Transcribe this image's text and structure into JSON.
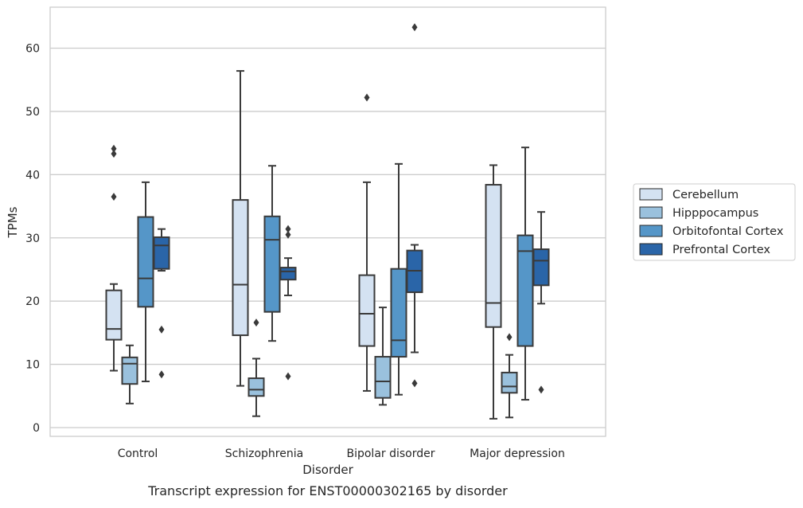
{
  "chart_data": {
    "type": "box",
    "title": "",
    "caption": "Transcript expression for ENST00000302165 by disorder",
    "xlabel": "Disorder",
    "ylabel": "TPMs",
    "ylim": [
      -1.5,
      66
    ],
    "yticks": [
      0,
      10,
      20,
      30,
      40,
      50,
      60
    ],
    "grid": true,
    "legend_position": "right",
    "categories": [
      "Control",
      "Schizophrenia",
      "Bipolar disorder",
      "Major depression"
    ],
    "series": [
      {
        "name": "Cerebellum",
        "color": "#d4e2f2",
        "boxes": [
          {
            "whisker_low": 9.0,
            "q1": 13.9,
            "median": 15.6,
            "q3": 21.7,
            "whisker_high": 22.7,
            "outliers": [
              44.1,
              43.3,
              36.5
            ]
          },
          {
            "whisker_low": 6.6,
            "q1": 14.6,
            "median": 22.6,
            "q3": 36.0,
            "whisker_high": 56.4,
            "outliers": []
          },
          {
            "whisker_low": 5.8,
            "q1": 12.9,
            "median": 18.0,
            "q3": 24.1,
            "whisker_high": 38.8,
            "outliers": [
              52.2
            ]
          },
          {
            "whisker_low": 1.4,
            "q1": 15.9,
            "median": 19.7,
            "q3": 38.4,
            "whisker_high": 41.5,
            "outliers": []
          }
        ]
      },
      {
        "name": "Hipppocampus",
        "color": "#9ac1dd",
        "boxes": [
          {
            "whisker_low": 3.8,
            "q1": 6.9,
            "median": 10.1,
            "q3": 11.1,
            "whisker_high": 13.0,
            "outliers": []
          },
          {
            "whisker_low": 1.8,
            "q1": 5.0,
            "median": 6.0,
            "q3": 7.8,
            "whisker_high": 10.9,
            "outliers": [
              16.6
            ]
          },
          {
            "whisker_low": 3.6,
            "q1": 4.7,
            "median": 7.3,
            "q3": 11.2,
            "whisker_high": 19.0,
            "outliers": []
          },
          {
            "whisker_low": 1.6,
            "q1": 5.5,
            "median": 6.5,
            "q3": 8.7,
            "whisker_high": 11.5,
            "outliers": [
              14.3
            ]
          }
        ]
      },
      {
        "name": "Orbitofontal Cortex",
        "color": "#5596c8",
        "boxes": [
          {
            "whisker_low": 7.3,
            "q1": 19.1,
            "median": 23.6,
            "q3": 33.3,
            "whisker_high": 38.8,
            "outliers": []
          },
          {
            "whisker_low": 13.7,
            "q1": 18.3,
            "median": 29.7,
            "q3": 33.4,
            "whisker_high": 41.4,
            "outliers": []
          },
          {
            "whisker_low": 5.2,
            "q1": 11.2,
            "median": 13.8,
            "q3": 25.1,
            "whisker_high": 41.7,
            "outliers": []
          },
          {
            "whisker_low": 4.4,
            "q1": 12.9,
            "median": 27.9,
            "q3": 30.4,
            "whisker_high": 44.3,
            "outliers": []
          }
        ]
      },
      {
        "name": "Prefrontal Cortex",
        "color": "#2a65a8",
        "boxes": [
          {
            "whisker_low": 24.8,
            "q1": 25.1,
            "median": 28.8,
            "q3": 30.1,
            "whisker_high": 31.4,
            "outliers": [
              15.5,
              8.4
            ]
          },
          {
            "whisker_low": 20.9,
            "q1": 23.4,
            "median": 24.7,
            "q3": 25.3,
            "whisker_high": 26.8,
            "outliers": [
              31.4,
              30.5,
              8.1
            ]
          },
          {
            "whisker_low": 11.9,
            "q1": 21.4,
            "median": 24.8,
            "q3": 28.0,
            "whisker_high": 28.9,
            "outliers": [
              7.0,
              63.3
            ]
          },
          {
            "whisker_low": 19.6,
            "q1": 22.5,
            "median": 26.4,
            "q3": 28.2,
            "whisker_high": 34.1,
            "outliers": [
              6.0
            ]
          }
        ]
      }
    ]
  }
}
